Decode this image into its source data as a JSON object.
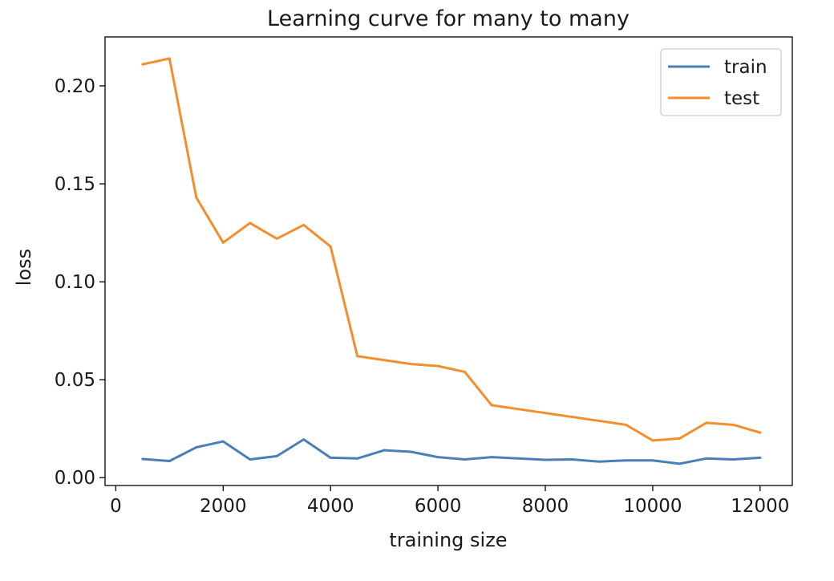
{
  "chart_data": {
    "type": "line",
    "title": "Learning curve for many to many",
    "xlabel": "training size",
    "ylabel": "loss",
    "xlim": [
      -200,
      12600
    ],
    "ylim": [
      -0.004,
      0.225
    ],
    "xticks": [
      0,
      2000,
      4000,
      6000,
      8000,
      10000,
      12000
    ],
    "xtick_labels": [
      "0",
      "2000",
      "4000",
      "6000",
      "8000",
      "10000",
      "12000"
    ],
    "yticks": [
      0.0,
      0.05,
      0.1,
      0.15,
      0.2
    ],
    "ytick_labels": [
      "0.00",
      "0.05",
      "0.10",
      "0.15",
      "0.20"
    ],
    "grid": false,
    "legend_position": "top-right",
    "x": [
      500,
      1000,
      1500,
      2000,
      2500,
      3000,
      3500,
      4000,
      4500,
      5000,
      5500,
      6000,
      6500,
      7000,
      7500,
      8000,
      8500,
      9000,
      9500,
      10000,
      10500,
      11000,
      11500,
      12000
    ],
    "series": [
      {
        "name": "train",
        "color": "#4a7fb5",
        "values": [
          0.0095,
          0.0085,
          0.0155,
          0.0185,
          0.0093,
          0.011,
          0.0195,
          0.0102,
          0.0098,
          0.014,
          0.0132,
          0.0105,
          0.0093,
          0.0105,
          0.0098,
          0.0091,
          0.0093,
          0.0082,
          0.0088,
          0.0088,
          0.0071,
          0.0098,
          0.0093,
          0.0102
        ]
      },
      {
        "name": "test",
        "color": "#f28e2b",
        "values": [
          0.211,
          0.214,
          0.143,
          0.12,
          0.13,
          0.122,
          0.129,
          0.118,
          0.062,
          0.06,
          0.058,
          0.057,
          0.054,
          0.037,
          0.035,
          0.033,
          0.031,
          0.029,
          0.027,
          0.019,
          0.02,
          0.028,
          0.027,
          0.023
        ]
      }
    ]
  }
}
